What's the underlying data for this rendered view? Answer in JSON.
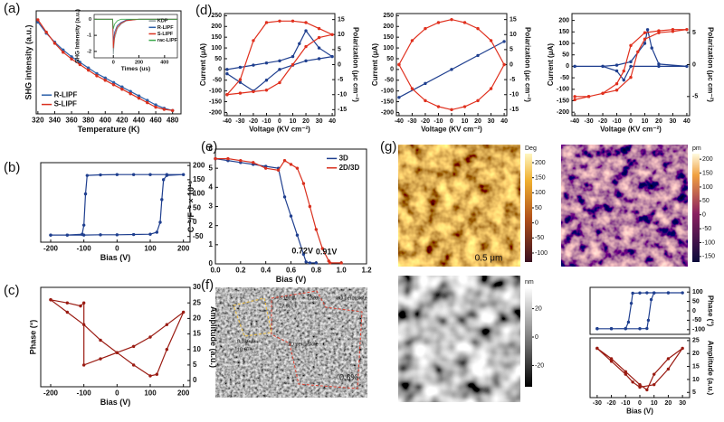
{
  "chart_data": [
    {
      "type": "line",
      "panel": "(a)",
      "xlabel": "Temperature (K)",
      "ylabel": "SHG intensity (a.u.)",
      "xlim": [
        318,
        490
      ],
      "xticks": [
        320,
        340,
        360,
        380,
        400,
        420,
        440,
        460,
        480
      ],
      "ylim": [
        0,
        0.92
      ],
      "legend": "lower left",
      "x": [
        320,
        330,
        340,
        350,
        360,
        370,
        380,
        390,
        400,
        410,
        420,
        430,
        440,
        450,
        460,
        470,
        480
      ],
      "series": [
        {
          "name": "R-LIPF",
          "color": "#2b5fa8",
          "values": [
            0.82,
            0.72,
            0.64,
            0.57,
            0.51,
            0.46,
            0.41,
            0.36,
            0.32,
            0.28,
            0.24,
            0.2,
            0.16,
            0.12,
            0.08,
            0.05,
            0.03
          ]
        },
        {
          "name": "S-LIPF",
          "color": "#d9301e",
          "values": [
            0.84,
            0.73,
            0.63,
            0.55,
            0.49,
            0.44,
            0.39,
            0.34,
            0.3,
            0.26,
            0.22,
            0.18,
            0.14,
            0.1,
            0.06,
            0.04,
            0.03
          ]
        }
      ]
    },
    {
      "type": "line",
      "xlabel": "Times (us)",
      "ylabel": "SHG Intensity (a.u.)",
      "xlim": [
        -150,
        500
      ],
      "xticks": [
        0,
        200,
        400
      ],
      "ylim": [
        -2.4,
        0.3
      ],
      "yticks": [
        -2,
        -1,
        0
      ],
      "legend": "upper right",
      "x": [
        -150,
        -5,
        0,
        10,
        30,
        60,
        100,
        200,
        500
      ],
      "series": [
        {
          "name": "KDP",
          "color": "#8a9a9a",
          "values": [
            0,
            0,
            -2.2,
            -1.2,
            -0.6,
            -0.3,
            -0.1,
            0,
            0
          ]
        },
        {
          "name": "R-LIPF",
          "color": "#2b5fa8",
          "values": [
            0,
            0,
            -1.4,
            -0.8,
            -0.4,
            -0.2,
            -0.05,
            0,
            0
          ]
        },
        {
          "name": "S-LIPF",
          "color": "#d9301e",
          "values": [
            0,
            0,
            -1.8,
            -1,
            -0.5,
            -0.25,
            -0.08,
            0,
            0
          ]
        },
        {
          "name": "rac-LIPF",
          "color": "#3aa84a",
          "values": [
            0,
            0,
            -0.6,
            -0.3,
            -0.1,
            0,
            0,
            0,
            0
          ]
        }
      ]
    },
    {
      "type": "line",
      "panel": "(b)",
      "xlabel": "Bias (V)",
      "xlim": [
        -230,
        220
      ],
      "xticks": [
        -200,
        -100,
        0,
        100,
        200
      ],
      "y2lim": [
        -70,
        210
      ],
      "y2ticks": [
        -50,
        0,
        50,
        100,
        150,
        200
      ],
      "series": [
        {
          "color": "#1f3f8f",
          "axis": "y2",
          "x": [
            -200,
            -150,
            -100,
            -50,
            0,
            50,
            100,
            120,
            130,
            135,
            140,
            150,
            200,
            150,
            100,
            50,
            0,
            -50,
            -90,
            -95,
            -100,
            -105,
            -150,
            -200
          ],
          "values": [
            -45,
            -45,
            -45,
            -44,
            -44,
            -43,
            -42,
            -35,
            0,
            80,
            150,
            165,
            168,
            168,
            168,
            168,
            168,
            167,
            165,
            100,
            -10,
            -42,
            -45,
            -45
          ]
        }
      ]
    },
    {
      "type": "line",
      "panel": "(c)",
      "xlabel": "Bias (V)",
      "ylabel": "Phase (°)",
      "y2label": "Amplitude (a.u.)",
      "xlim": [
        -230,
        220
      ],
      "xticks": [
        -200,
        -100,
        0,
        100,
        200
      ],
      "y2lim": [
        -2,
        30
      ],
      "y2ticks": [
        0,
        5,
        10,
        15,
        20,
        25,
        30
      ],
      "series": [
        {
          "color": "#9a1b12",
          "axis": "y2",
          "x": [
            -200,
            -150,
            -100,
            -50,
            0,
            50,
            100,
            120,
            150,
            200,
            150,
            100,
            50,
            0,
            -50,
            -100,
            -100,
            -110,
            -150,
            -200
          ],
          "values": [
            26,
            22,
            18,
            13,
            9,
            5,
            1.5,
            2,
            10,
            22,
            18,
            14,
            11,
            9,
            7,
            5,
            25,
            24,
            25,
            26
          ]
        }
      ]
    },
    {
      "type": "line",
      "panel": "(d)",
      "xlabel": "Voltage (KV cm⁻²)",
      "ylabel": "Current (μA)",
      "y2label": "Polarization (μc cm⁻²)",
      "xlim": [
        -42,
        42
      ],
      "xticks": [
        -40,
        -30,
        -20,
        -10,
        0,
        10,
        20,
        30,
        40
      ],
      "ylim": [
        -215,
        260
      ],
      "yticks": [
        -200,
        -150,
        -100,
        -50,
        0,
        50,
        100,
        150,
        200,
        250
      ],
      "y2lim": [
        -17,
        17
      ],
      "y2ticks": [
        -15,
        -10,
        -5,
        0,
        5,
        10,
        15
      ],
      "series": [
        {
          "color": "#1f3f8f",
          "x": [
            -40,
            -30,
            -20,
            -10,
            0,
            10,
            15,
            20,
            30,
            40,
            30,
            20,
            10,
            0,
            -10,
            -20,
            -30,
            -40
          ],
          "values": [
            0,
            10,
            20,
            30,
            40,
            60,
            120,
            180,
            100,
            60,
            50,
            40,
            20,
            0,
            -50,
            -100,
            -60,
            -20
          ]
        },
        {
          "color": "#e0301e",
          "axis": "y2",
          "x": [
            -40,
            -30,
            -20,
            -10,
            0,
            10,
            20,
            30,
            40,
            30,
            20,
            10,
            0,
            -10,
            -20,
            -30,
            -40
          ],
          "values": [
            -10,
            -9.5,
            -9,
            -8.5,
            -6,
            0,
            6,
            9,
            10,
            12,
            14,
            14.5,
            14.5,
            14,
            8,
            -5,
            -10
          ]
        }
      ]
    },
    {
      "type": "line",
      "xlabel": "Voltage (KV cm⁻²)",
      "ylabel": "Current (μA)",
      "y2label": "Polarization (μc cm⁻²)",
      "xlim": [
        -42,
        42
      ],
      "xticks": [
        -40,
        -30,
        -20,
        -10,
        0,
        10,
        20,
        30,
        40
      ],
      "ylim": [
        -215,
        260
      ],
      "yticks": [
        -200,
        -150,
        -100,
        -50,
        0,
        50,
        100,
        150,
        200,
        250
      ],
      "y2lim": [
        -17,
        17
      ],
      "y2ticks": [
        -15,
        -10,
        -5,
        0,
        5,
        10,
        15
      ],
      "series": [
        {
          "color": "#1f3f8f",
          "x": [
            -40,
            -20,
            0,
            20,
            40
          ],
          "values": [
            -130,
            -65,
            0,
            65,
            130
          ]
        },
        {
          "color": "#e0301e",
          "axis": "y2",
          "x": [
            -40,
            -30,
            -20,
            -10,
            0,
            10,
            20,
            30,
            40,
            30,
            20,
            10,
            0,
            -10,
            -20,
            -30,
            -40
          ],
          "values": [
            0,
            8,
            12,
            14,
            15,
            14,
            12,
            8,
            0,
            -8,
            -12,
            -14,
            -15,
            -14,
            -12,
            -8,
            0
          ]
        }
      ]
    },
    {
      "type": "line",
      "xlabel": "Voltage (KV cm⁻²)",
      "ylabel": "Current (μA)",
      "y2label": "Polarization (μc cm⁻²)",
      "xlim": [
        -42,
        42
      ],
      "xticks": [
        -40,
        -30,
        -20,
        -10,
        0,
        10,
        20,
        30,
        40
      ],
      "ylim": [
        -215,
        230
      ],
      "yticks": [
        -200,
        -150,
        -100,
        -50,
        0,
        50,
        100,
        150,
        200
      ],
      "y2lim": [
        -8,
        8
      ],
      "y2ticks": [
        -5,
        0,
        5
      ],
      "series": [
        {
          "color": "#1f3f8f",
          "x": [
            -40,
            -20,
            -10,
            0,
            10,
            12,
            15,
            20,
            40,
            20,
            0,
            -5,
            -10,
            -20,
            -40
          ],
          "values": [
            0,
            0,
            5,
            20,
            100,
            160,
            80,
            10,
            0,
            0,
            0,
            -60,
            -20,
            0,
            0
          ]
        },
        {
          "color": "#e0301e",
          "axis": "y2",
          "x": [
            -40,
            -30,
            -20,
            -10,
            0,
            5,
            10,
            20,
            30,
            40,
            30,
            20,
            10,
            0,
            -5,
            -10,
            -20,
            -30,
            -40
          ],
          "values": [
            -5,
            -5,
            -4.5,
            -4,
            -2,
            2,
            4,
            5,
            5.2,
            5.5,
            5.5,
            5.3,
            5,
            3,
            -1,
            -3,
            -4.5,
            -5,
            -5.5
          ]
        }
      ]
    },
    {
      "type": "line",
      "panel": "(e)",
      "xlabel": "Bias (V)",
      "ylabel": "C⁻²/F⁻² × 10¹⁶",
      "xlim": [
        0,
        1.2
      ],
      "xticks": [
        {
          "value": 0,
          "label": "0.0"
        },
        0.2,
        0.4,
        0.6,
        0.8,
        {
          "value": 1,
          "label": "1.0"
        },
        1.2
      ],
      "ylim": [
        0,
        6
      ],
      "yticks": [
        0,
        1,
        2,
        3,
        4,
        5,
        6
      ],
      "legend": "upper right",
      "annotations": [
        {
          "text": "0.72V",
          "x": 0.72,
          "y": 0.1
        },
        {
          "text": "0.91V",
          "x": 0.91,
          "y": 0.05
        }
      ],
      "series": [
        {
          "name": "3D",
          "color": "#1f3f8f",
          "x": [
            0,
            0.1,
            0.2,
            0.3,
            0.4,
            0.5,
            0.55,
            0.6,
            0.65,
            0.7,
            0.72,
            0.75,
            0.8
          ],
          "values": [
            5.5,
            5.4,
            5.3,
            5.2,
            5.1,
            5,
            3.5,
            2.5,
            1.5,
            0.5,
            0.1,
            0.05,
            0.05
          ]
        },
        {
          "name": "2D/3D",
          "color": "#d9301e",
          "x": [
            0,
            0.1,
            0.2,
            0.3,
            0.4,
            0.5,
            0.55,
            0.6,
            0.65,
            0.7,
            0.75,
            0.8,
            0.85,
            0.9,
            0.91,
            1
          ],
          "values": [
            5.5,
            5.5,
            5.4,
            5.3,
            5,
            4.9,
            5.4,
            5.2,
            5,
            4.2,
            3,
            1.8,
            0.8,
            0.15,
            0.05,
            0.05
          ]
        }
      ]
    },
    {
      "type": "line",
      "y2label": "Phase (°)",
      "xlim": [
        -35,
        35
      ],
      "y2lim": [
        -125,
        125
      ],
      "y2ticks": [
        -100,
        -50,
        0,
        50,
        100
      ],
      "series": [
        {
          "color": "#1f3f8f",
          "axis": "y2",
          "x": [
            -30,
            -20,
            -10,
            0,
            5,
            6,
            8,
            10,
            20,
            30,
            20,
            10,
            5,
            0,
            -5,
            -6,
            -8,
            -10,
            -20,
            -30
          ],
          "values": [
            -95,
            -95,
            -95,
            -95,
            -94,
            -50,
            60,
            95,
            96,
            96,
            96,
            96,
            96,
            95,
            94,
            40,
            -60,
            -94,
            -95,
            -95
          ]
        }
      ]
    },
    {
      "type": "line",
      "xlabel": "Bias (V)",
      "y2label": "Amplitude (a.u.)",
      "xlim": [
        -35,
        35
      ],
      "xticks": [
        -30,
        -20,
        -10,
        0,
        10,
        20,
        30
      ],
      "y2lim": [
        3,
        26
      ],
      "y2ticks": [
        5,
        10,
        15,
        20,
        25
      ],
      "series": [
        {
          "color": "#9a1b12",
          "axis": "y2",
          "x": [
            -30,
            -20,
            -10,
            -5,
            0,
            10,
            20,
            30,
            20,
            10,
            5,
            0,
            -10,
            -20,
            -30
          ],
          "values": [
            22,
            17,
            12,
            9,
            7,
            8,
            14,
            22,
            18,
            12,
            6,
            8,
            13,
            18,
            22
          ]
        }
      ]
    }
  ],
  "images": {
    "f": {
      "panel": "(f)",
      "annotations": [
        "3.190 Å",
        "27.96°",
        "(220)",
        "3D perovskite",
        "8.136 Å",
        "10.67°",
        "1D perovskite",
        "0.6%"
      ]
    },
    "g": {
      "panel": "(g)",
      "scale_bar": "0.5 μm",
      "colorbars": [
        {
          "label": "Deg",
          "lim": [
            -130,
            230
          ],
          "ticks": [
            -100,
            -50,
            0,
            50,
            100,
            150,
            200
          ]
        },
        {
          "label": "pm",
          "lim": [
            -170,
            220
          ],
          "ticks": [
            -150,
            -100,
            -50,
            0,
            50,
            100,
            150,
            200
          ]
        },
        {
          "label": "nm",
          "lim": [
            -35,
            35
          ],
          "ticks": [
            -20,
            0,
            20
          ]
        }
      ]
    }
  }
}
